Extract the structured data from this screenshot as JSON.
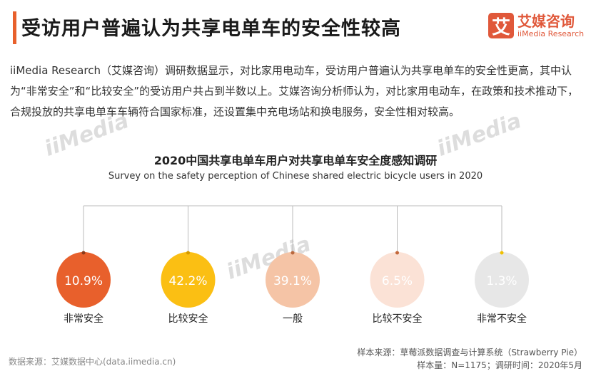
{
  "header": {
    "title": "受访用户普遍认为共享电单车的安全性较高",
    "logo_mark": "艾",
    "logo_cn": "艾媒咨询",
    "logo_en": "iiMedia Research"
  },
  "paragraph": "iiMedia Research（艾媒咨询）调研数据显示，对比家用电动车，受访用户普遍认为共享电单车的安全性更高，其中认为“非常安全”和“比较安全”的受访用户共占到半数以上。艾媒咨询分析师认为，对比家用电动车，在政策和技术推动下，合规投放的共享电单车车辆符合国家标准，还设置集中充电场站和换电服务，安全性相对较高。",
  "watermark": "iiMedia",
  "chart_data": {
    "type": "bubble",
    "title": "2020中国共享电单车用户对共享电单车安全度感知调研",
    "subtitle": "Survey on the safety perception of Chinese shared electric bicycle users in 2020",
    "categories": [
      "非常安全",
      "比较安全",
      "一般",
      "比较不安全",
      "非常不安全"
    ],
    "values": [
      10.9,
      42.2,
      39.1,
      6.5,
      1.3
    ],
    "labels": [
      "10.9%",
      "42.2%",
      "39.1%",
      "6.5%",
      "1.3%"
    ],
    "colors": [
      "#e8602c",
      "#fbbf13",
      "#f5c4a6",
      "#fbe2d6",
      "#e7e7e7"
    ],
    "dot_colors": [
      "#8a3a1a",
      "#d59a00",
      "#b9673d",
      "#c4683b",
      "#f0c000"
    ]
  },
  "footer": {
    "data_source": "数据来源：艾媒数据中心(data.iimedia.cn)",
    "sample_source": "样本来源：草莓派数据调查与计算系统（Strawberry Pie）",
    "sample_info": "样本量：N=1175；调研时间：2020年5月"
  }
}
